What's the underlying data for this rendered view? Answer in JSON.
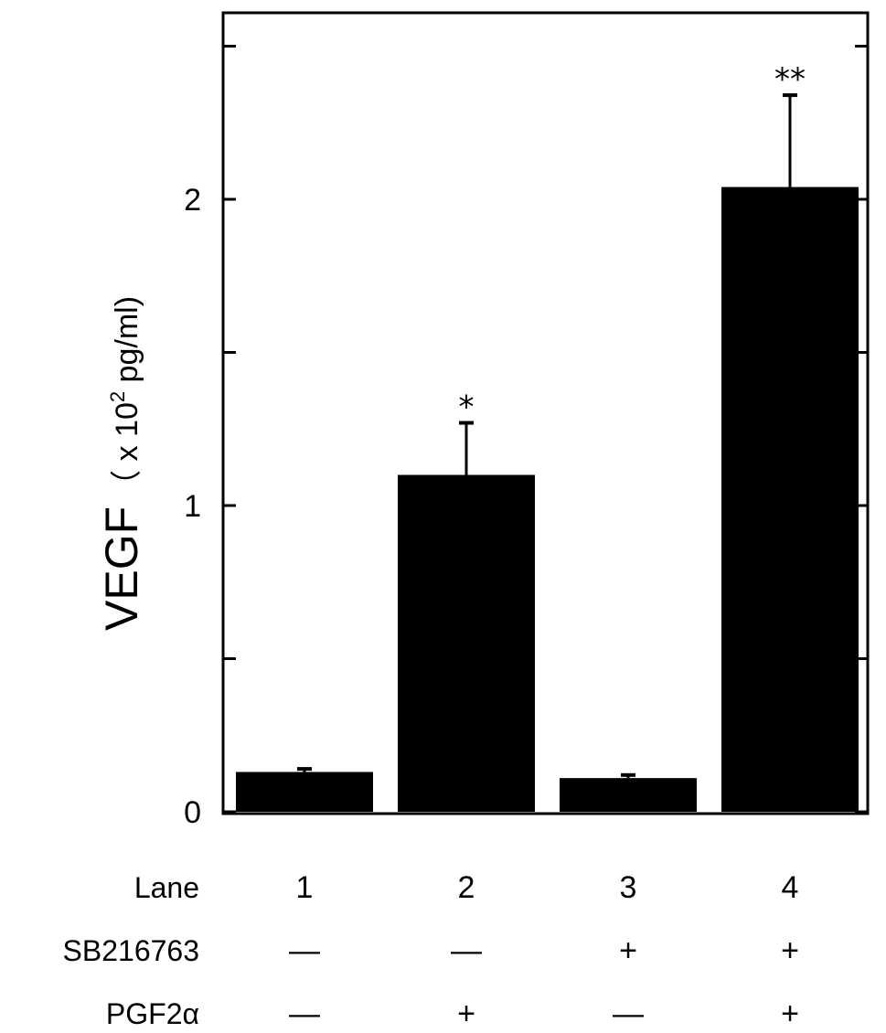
{
  "chart_data": {
    "type": "bar",
    "categories": [
      "1",
      "2",
      "3",
      "4"
    ],
    "values": [
      0.13,
      1.1,
      0.11,
      2.04
    ],
    "errors": [
      0.01,
      0.17,
      0.01,
      0.3
    ],
    "annotations": [
      "",
      "*",
      "",
      "**"
    ],
    "ylabel": {
      "main": "VEGF",
      "unit_prefix": "（ x 10",
      "unit_exp": "2",
      "unit_suffix": " pg/ml)"
    },
    "ylim": [
      0,
      2.6
    ],
    "yticks": [
      {
        "value": 0,
        "label": "0"
      },
      {
        "value": 1,
        "label": "1"
      },
      {
        "value": 2,
        "label": "2"
      }
    ],
    "minor_ticks": [
      0.5,
      1.5,
      2.5
    ],
    "bar_color": "#000000",
    "grid": false,
    "legend": "none"
  },
  "conditions": {
    "lane_label": "Lane",
    "rows": [
      {
        "label": "SB216763",
        "signs": [
          "—",
          "—",
          "+",
          "+"
        ]
      },
      {
        "label": "PGF2α",
        "signs": [
          "—",
          "+",
          "—",
          "+"
        ]
      }
    ]
  }
}
